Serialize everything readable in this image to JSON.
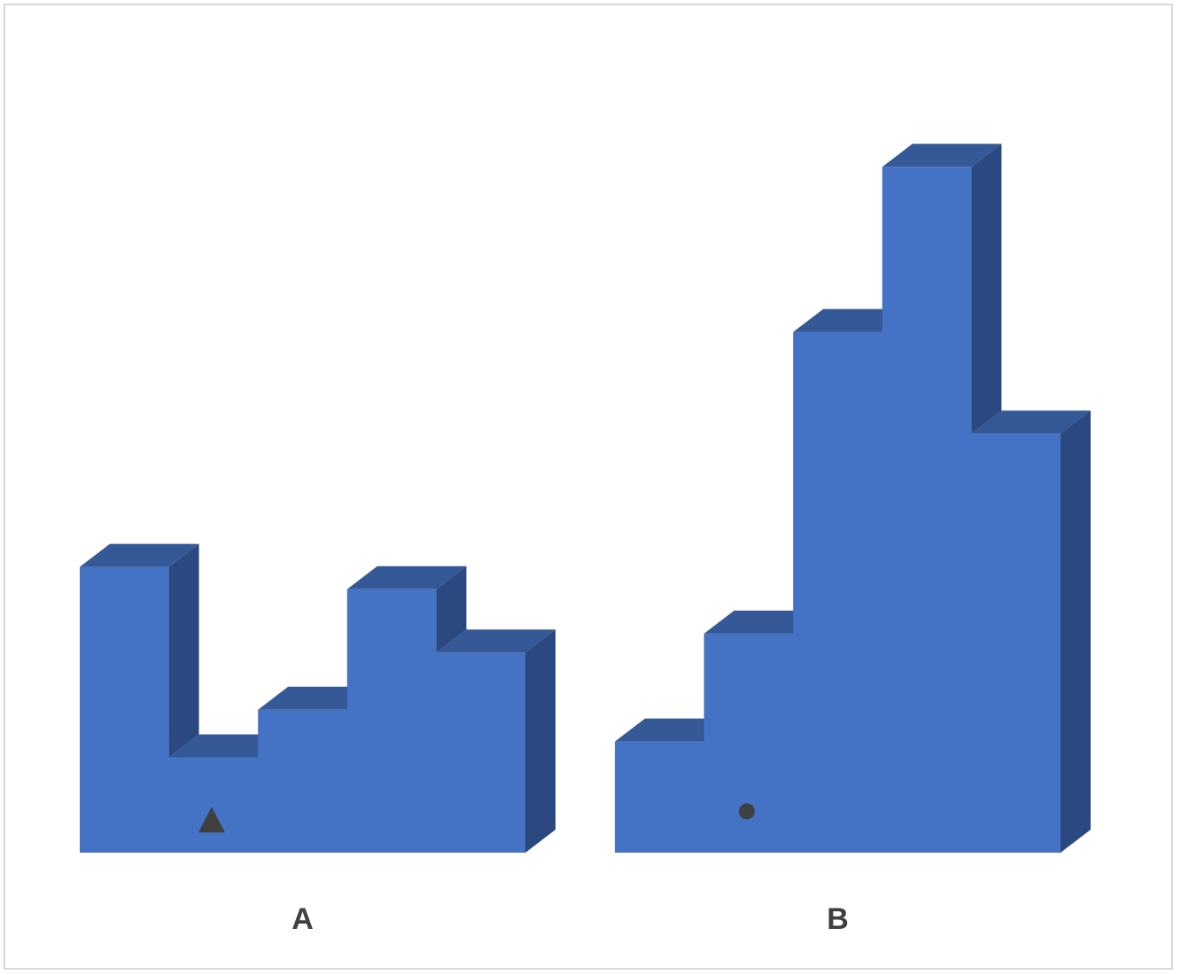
{
  "chart_data": {
    "type": "bar",
    "style": "3d-stepped-area",
    "title": "",
    "xlabel": "",
    "ylabel": "",
    "groups": [
      {
        "label": "A",
        "values": [
          9,
          3,
          4.5,
          8.3,
          6.3
        ],
        "marker": {
          "symbol": "triangle",
          "position_index": 1,
          "value": 1
        }
      },
      {
        "label": "B",
        "values": [
          3.5,
          6.9,
          16.4,
          21.6,
          13.2
        ],
        "marker": {
          "symbol": "circle",
          "position_index": 1,
          "value": 1.3
        }
      }
    ],
    "ylim": [
      0,
      22
    ],
    "grid": false,
    "legend": "none",
    "colors": {
      "front": "#4472c4",
      "top": "#355896",
      "side": "#2b4880",
      "marker": "#404040",
      "label": "#404040",
      "frame": "#d9d9d9"
    }
  }
}
